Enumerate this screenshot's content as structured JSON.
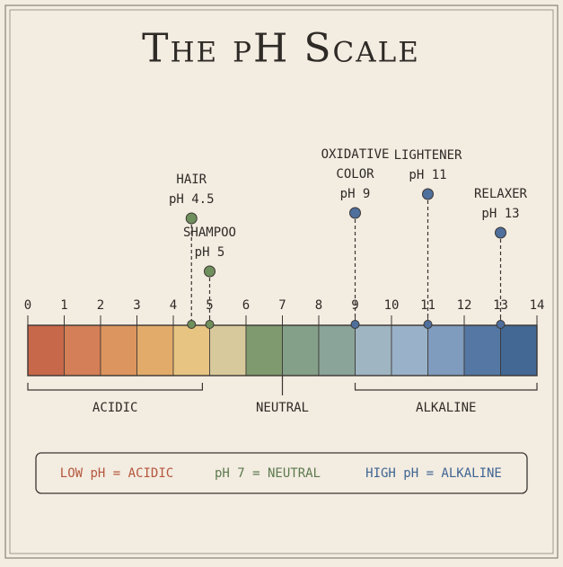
{
  "title": "The pH Scale",
  "scale": {
    "min": 0,
    "max": 14,
    "ticks": [
      0,
      1,
      2,
      3,
      4,
      5,
      6,
      7,
      8,
      9,
      10,
      11,
      12,
      13,
      14
    ],
    "colors": [
      "#c8684a",
      "#d47f57",
      "#dc955f",
      "#e2ab6a",
      "#e7c482",
      "#d8c99c",
      "#7f9a6e",
      "#84a088",
      "#8aa49a",
      "#9fb5c2",
      "#9ab2c9",
      "#7f9bbd",
      "#5577a3",
      "#426893"
    ]
  },
  "markers": [
    {
      "name": [
        "HAIR"
      ],
      "label": "pH 4.5",
      "value": 4.5,
      "color": "#6f8f5c"
    },
    {
      "name": [
        "SHAMPOO"
      ],
      "label": "pH 5",
      "value": 5,
      "color": "#6f8f5c"
    },
    {
      "name": [
        "OXIDATIVE",
        "COLOR"
      ],
      "label": "pH 9",
      "value": 9,
      "color": "#4f6f9c"
    },
    {
      "name": [
        "LIGHTENER"
      ],
      "label": "pH 11",
      "value": 11,
      "color": "#4f6f9c"
    },
    {
      "name": [
        "RELAXER"
      ],
      "label": "pH 13",
      "value": 13,
      "color": "#4f6f9c"
    }
  ],
  "regions": [
    {
      "label": "ACIDIC",
      "from": 0,
      "to": 4.8
    },
    {
      "label": "NEUTRAL",
      "at": 7
    },
    {
      "label": "ALKALINE",
      "from": 9,
      "to": 14
    }
  ],
  "legend": [
    {
      "text": "LOW pH = ACIDIC",
      "color": "#b5573d"
    },
    {
      "text": "pH 7 = NEUTRAL",
      "color": "#5d7a4e"
    },
    {
      "text": "HIGH pH = ALKALINE",
      "color": "#3f6592"
    }
  ]
}
